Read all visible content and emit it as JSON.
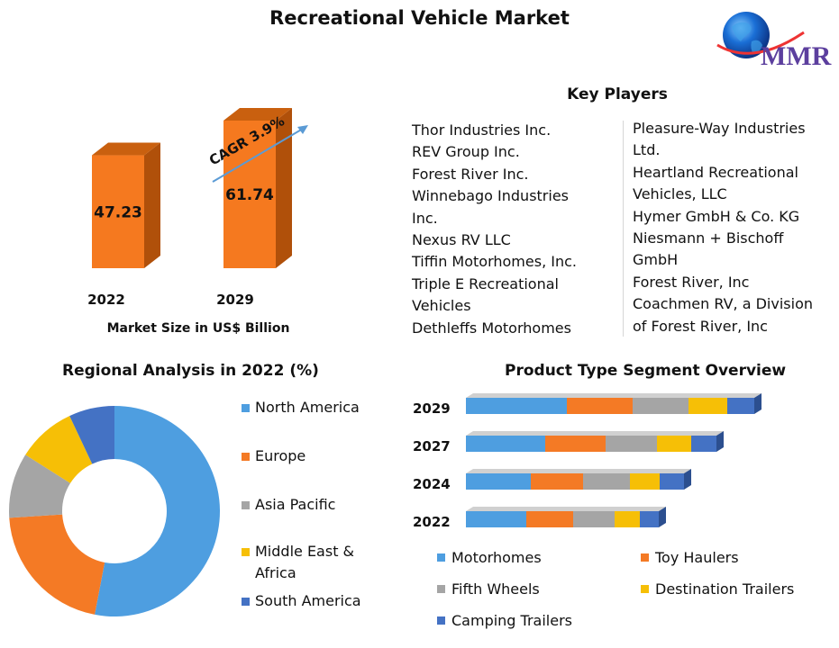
{
  "title": "Recreational Vehicle Market",
  "logo": {
    "text": "MMR"
  },
  "market_size": {
    "cagr_label": "CAGR 3.9%",
    "caption": "Market Size in US$ Billion",
    "bars": [
      {
        "year": "2022",
        "value": 47.23,
        "label": "47.23"
      },
      {
        "year": "2029",
        "value": 61.74,
        "label": "61.74"
      }
    ],
    "color": "#f5791f"
  },
  "key_players": {
    "title": "Key Players",
    "col1": [
      "Thor Industries Inc.",
      "REV Group Inc.",
      "Forest River Inc.",
      "Winnebago Industries\nInc.",
      "Nexus RV LLC",
      "Tiffin Motorhomes, Inc.",
      "Triple E Recreational\nVehicles",
      "Dethleffs Motorhomes"
    ],
    "col2": [
      "Pleasure-Way Industries\nLtd.",
      "Heartland Recreational\nVehicles, LLC",
      "Hymer GmbH & Co. KG",
      "Niesmann + Bischoff\nGmbH",
      "Forest River, Inc",
      "Coachmen RV, a Division\nof Forest River, Inc"
    ]
  },
  "regional": {
    "title": "Regional Analysis in 2022 (%)",
    "legend": [
      {
        "label": "North America",
        "color": "#4e9ee0"
      },
      {
        "label": "Europe",
        "color": "#f47a25"
      },
      {
        "label": "Asia Pacific",
        "color": "#a5a5a5"
      },
      {
        "label": "Middle East &\nAfrica",
        "color": "#f6bf06"
      },
      {
        "label": "South America",
        "color": "#4472c4"
      }
    ]
  },
  "product": {
    "title": "Product Type Segment Overview",
    "legend": [
      {
        "label": "Motorhomes",
        "color": "#4e9ee0"
      },
      {
        "label": "Toy Haulers",
        "color": "#f47a25"
      },
      {
        "label": "Fifth Wheels",
        "color": "#a5a5a5"
      },
      {
        "label": "Destination Trailers",
        "color": "#f6bf06"
      },
      {
        "label": "Camping Trailers",
        "color": "#4472c4"
      }
    ]
  },
  "chart_data": [
    {
      "type": "bar",
      "title": "Market Size in US$ Billion",
      "categories": [
        "2022",
        "2029"
      ],
      "values": [
        47.23,
        61.74
      ],
      "annotations": [
        "CAGR 3.9%"
      ]
    },
    {
      "type": "pie",
      "title": "Regional Analysis in 2022 (%)",
      "categories": [
        "North America",
        "Europe",
        "Asia Pacific",
        "Middle East & Africa",
        "South America"
      ],
      "values": [
        53,
        21,
        10,
        9,
        7
      ],
      "donut": true,
      "legend": "right"
    },
    {
      "type": "bar",
      "orientation": "horizontal",
      "stacked": true,
      "title": "Product Type Segment Overview",
      "categories": [
        "2029",
        "2027",
        "2024",
        "2022"
      ],
      "series": [
        {
          "name": "Motorhomes",
          "values": [
            112,
            88,
            72,
            67
          ]
        },
        {
          "name": "Toy Haulers",
          "values": [
            73,
            67,
            58,
            52
          ]
        },
        {
          "name": "Fifth Wheels",
          "values": [
            62,
            57,
            52,
            46
          ]
        },
        {
          "name": "Destination Trailers",
          "values": [
            43,
            38,
            33,
            28
          ]
        },
        {
          "name": "Camping Trailers",
          "values": [
            30,
            28,
            27,
            21
          ]
        }
      ],
      "legend": "bottom"
    }
  ]
}
